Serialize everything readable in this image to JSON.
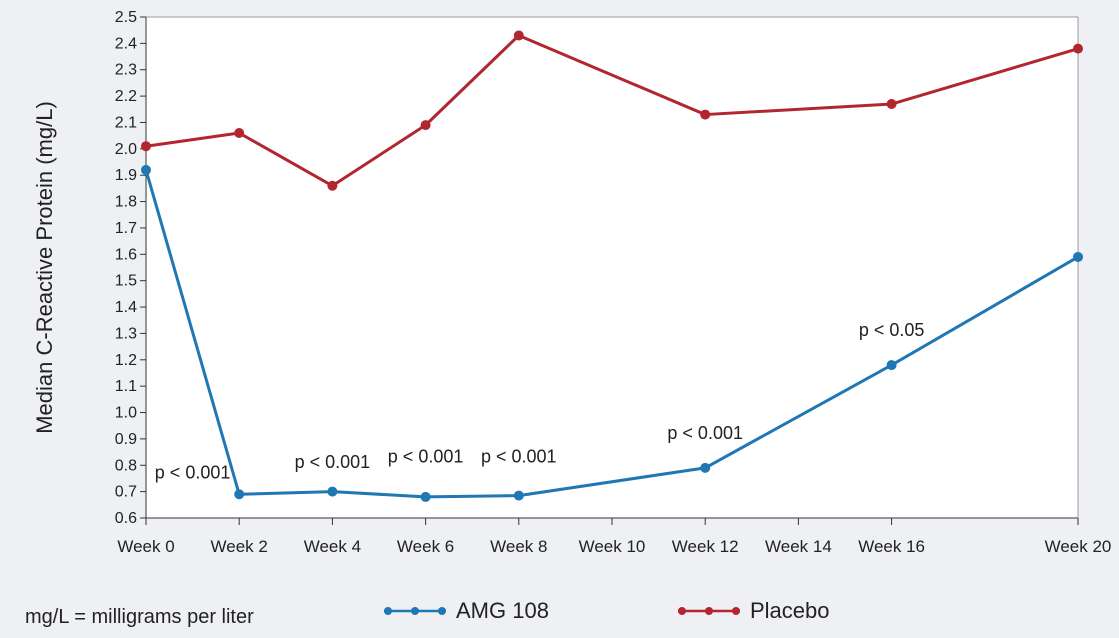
{
  "chart_data": {
    "type": "line",
    "title": "",
    "xlabel": "",
    "ylabel": "Median C-Reactive Protein (mg/L)",
    "categories": [
      "Week 0",
      "Week 2",
      "Week 4",
      "Week 6",
      "Week 8",
      "Week 10",
      "Week 12",
      "Week 14",
      "Week 16",
      "Week 20"
    ],
    "x": [
      0,
      2,
      4,
      6,
      8,
      10,
      12,
      14,
      16,
      20
    ],
    "ylim": [
      0.6,
      2.5
    ],
    "yticks": [
      "0.6",
      "0.7",
      "0.8",
      "0.9",
      "1.0",
      "1.1",
      "1.2",
      "1.3",
      "1.4",
      "1.5",
      "1.6",
      "1.7",
      "1.8",
      "1.9",
      "2.0",
      "2.1",
      "2.2",
      "2.3",
      "2.4",
      "2.5"
    ],
    "grid": false,
    "legend_position": "bottom",
    "series": [
      {
        "name": "AMG 108",
        "color": "#1f77b4",
        "x": [
          0,
          2,
          4,
          6,
          8,
          12,
          16,
          20
        ],
        "values": [
          1.92,
          0.69,
          0.7,
          0.68,
          0.685,
          0.79,
          1.18,
          1.59
        ]
      },
      {
        "name": "Placebo",
        "color": "#b2262f",
        "x": [
          0,
          2,
          4,
          6,
          8,
          12,
          16,
          20
        ],
        "values": [
          2.01,
          2.06,
          1.86,
          2.09,
          2.43,
          2.13,
          2.17,
          2.38
        ]
      }
    ],
    "annotations": [
      {
        "text": "p < 0.001",
        "x": 1,
        "y": 0.75
      },
      {
        "text": "p < 0.001",
        "x": 4,
        "y": 0.79
      },
      {
        "text": "p < 0.001",
        "x": 6,
        "y": 0.81
      },
      {
        "text": "p < 0.001",
        "x": 8,
        "y": 0.81
      },
      {
        "text": "p < 0.001",
        "x": 12,
        "y": 0.9
      },
      {
        "text": "p < 0.05",
        "x": 16,
        "y": 1.29
      }
    ]
  },
  "footnote": "mg/L = milligrams per liter"
}
